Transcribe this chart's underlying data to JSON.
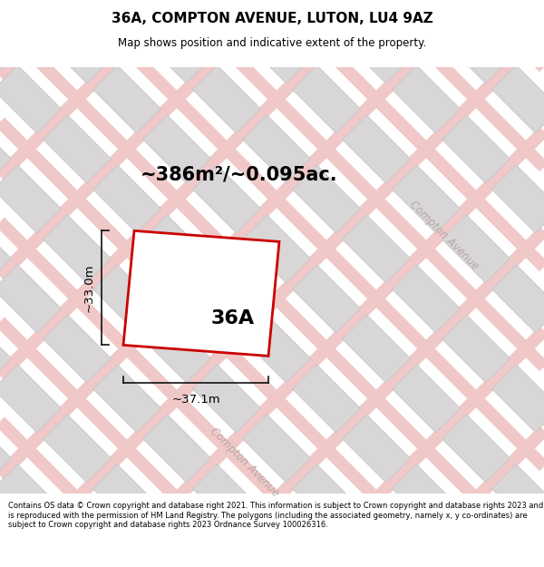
{
  "title": "36A, COMPTON AVENUE, LUTON, LU4 9AZ",
  "subtitle": "Map shows position and indicative extent of the property.",
  "area_text": "~386m²/~0.095ac.",
  "label": "36A",
  "dim_width": "~37.1m",
  "dim_height": "~33.0m",
  "footer": "Contains OS data © Crown copyright and database right 2021. This information is subject to Crown copyright and database rights 2023 and is reproduced with the permission of HM Land Registry. The polygons (including the associated geometry, namely x, y co-ordinates) are subject to Crown copyright and database rights 2023 Ordnance Survey 100026316.",
  "map_bg": "#f2f0f0",
  "plot_color": "#cc0000",
  "plot_fill": "#ffffff",
  "road_pink": "#f0c8c8",
  "block_fc": "#d8d6d6",
  "block_ec": "#c8c6c6",
  "road_label_color": "#b8a8a8",
  "dim_color": "#111111",
  "figsize": [
    6.0,
    6.25
  ],
  "dpi": 100,
  "title_fontsize": 11,
  "subtitle_fontsize": 8.5,
  "footer_fontsize": 6.0
}
